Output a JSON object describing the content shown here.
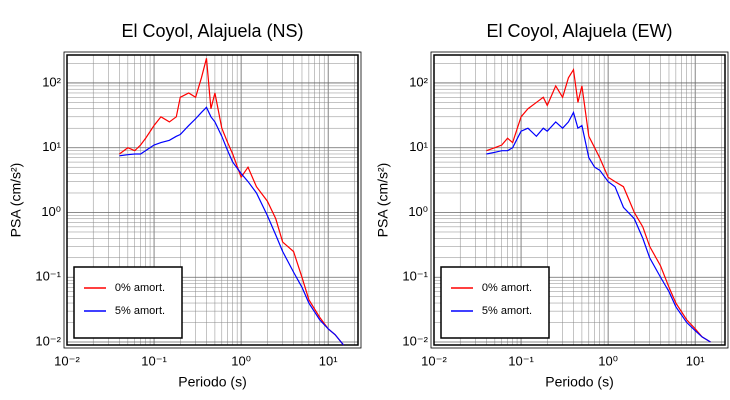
{
  "chart_data": [
    {
      "type": "line",
      "title": "El Coyol, Alajuela (NS)",
      "x_label": "Periodo (s)",
      "y_label": "PSA (cm/s²)",
      "xscale": "log",
      "yscale": "log",
      "grid": true,
      "legend": "lower left",
      "xlim": [
        0.01,
        22
      ],
      "ylim": [
        0.009,
        270
      ],
      "xticks": [
        {
          "value": 0.01,
          "label": "10⁻²"
        },
        {
          "value": 0.1,
          "label": "10⁻¹"
        },
        {
          "value": 1,
          "label": "10⁰"
        },
        {
          "value": 10,
          "label": "10¹"
        }
      ],
      "yticks": [
        {
          "value": 0.01,
          "label": "10⁻²"
        },
        {
          "value": 0.1,
          "label": "10⁻¹"
        },
        {
          "value": 1,
          "label": "10⁰"
        },
        {
          "value": 10,
          "label": "10¹"
        },
        {
          "value": 100,
          "label": "10²"
        }
      ],
      "x": [
        0.04,
        0.05,
        0.06,
        0.07,
        0.08,
        0.1,
        0.12,
        0.15,
        0.18,
        0.2,
        0.25,
        0.3,
        0.35,
        0.4,
        0.45,
        0.5,
        0.6,
        0.7,
        0.8,
        1.0,
        1.2,
        1.5,
        2,
        2.5,
        3,
        4,
        5,
        6,
        8,
        10,
        12,
        15
      ],
      "series": [
        {
          "name": "0% amort.",
          "color": "#ff0000",
          "values": [
            8,
            10,
            9,
            11,
            14,
            22,
            30,
            25,
            30,
            60,
            70,
            60,
            120,
            240,
            40,
            70,
            20,
            12,
            8,
            3.5,
            5,
            2.5,
            1.5,
            0.8,
            0.35,
            0.25,
            0.1,
            0.045,
            0.024,
            0.016,
            0.013,
            0.009
          ]
        },
        {
          "name": "5% amort.",
          "color": "#0000ff",
          "values": [
            7.5,
            7.8,
            8,
            8,
            9,
            11,
            12,
            13,
            15,
            16,
            22,
            28,
            35,
            42,
            30,
            25,
            15,
            9,
            6,
            4,
            3,
            2,
            0.9,
            0.45,
            0.25,
            0.12,
            0.07,
            0.04,
            0.022,
            0.016,
            0.013,
            0.009
          ]
        }
      ]
    },
    {
      "type": "line",
      "title": "El Coyol, Alajuela (EW)",
      "x_label": "Periodo (s)",
      "y_label": "PSA (cm/s²)",
      "xscale": "log",
      "yscale": "log",
      "grid": true,
      "legend": "lower left",
      "xlim": [
        0.01,
        22
      ],
      "ylim": [
        0.009,
        270
      ],
      "xticks": [
        {
          "value": 0.01,
          "label": "10⁻²"
        },
        {
          "value": 0.1,
          "label": "10⁻¹"
        },
        {
          "value": 1,
          "label": "10⁰"
        },
        {
          "value": 10,
          "label": "10¹"
        }
      ],
      "yticks": [
        {
          "value": 0.01,
          "label": "10⁻²"
        },
        {
          "value": 0.1,
          "label": "10⁻¹"
        },
        {
          "value": 1,
          "label": "10⁰"
        },
        {
          "value": 10,
          "label": "10¹"
        },
        {
          "value": 100,
          "label": "10²"
        }
      ],
      "x": [
        0.04,
        0.05,
        0.06,
        0.07,
        0.08,
        0.1,
        0.12,
        0.15,
        0.18,
        0.2,
        0.25,
        0.3,
        0.35,
        0.4,
        0.45,
        0.5,
        0.6,
        0.7,
        0.8,
        1.0,
        1.2,
        1.5,
        2,
        2.5,
        3,
        4,
        5,
        6,
        8,
        10,
        12,
        15
      ],
      "series": [
        {
          "name": "0% amort.",
          "color": "#ff0000",
          "values": [
            9,
            10,
            11,
            14,
            12,
            30,
            40,
            50,
            60,
            45,
            90,
            60,
            120,
            160,
            50,
            90,
            15,
            10,
            7,
            3.5,
            3,
            2.5,
            1,
            0.6,
            0.3,
            0.15,
            0.07,
            0.04,
            0.022,
            0.016,
            0.012,
            0.01
          ]
        },
        {
          "name": "5% amort.",
          "color": "#0000ff",
          "values": [
            8,
            8.5,
            9,
            9,
            10,
            18,
            20,
            15,
            20,
            18,
            25,
            20,
            25,
            35,
            20,
            22,
            7,
            5,
            4.5,
            3,
            2.5,
            1.2,
            0.8,
            0.4,
            0.2,
            0.1,
            0.06,
            0.035,
            0.02,
            0.015,
            0.012,
            0.01
          ]
        }
      ]
    }
  ]
}
